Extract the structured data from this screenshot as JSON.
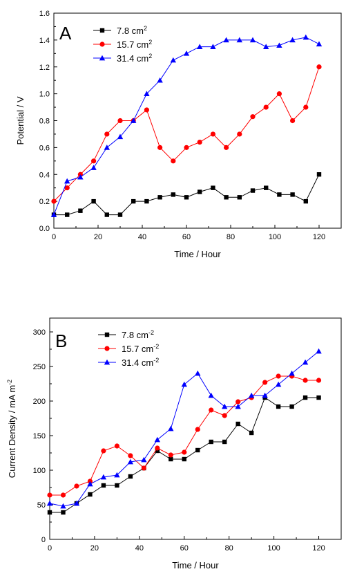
{
  "chart_data": [
    {
      "type": "line",
      "panel_letter": "A",
      "xlabel": "Time / Hour",
      "ylabel": "Potential / V",
      "xlim": [
        0,
        130
      ],
      "ylim": [
        0.0,
        1.6
      ],
      "xticks": [
        0,
        20,
        40,
        60,
        80,
        100,
        120
      ],
      "yticks": [
        0.0,
        0.2,
        0.4,
        0.6,
        0.8,
        1.0,
        1.2,
        1.4,
        1.6
      ],
      "xtick_labels": [
        "0",
        "20",
        "40",
        "60",
        "80",
        "100",
        "120"
      ],
      "ytick_labels": [
        "0.0",
        "0.2",
        "0.4",
        "0.6",
        "0.8",
        "1.0",
        "1.2",
        "1.4",
        "1.6"
      ],
      "legend_position": "top-left",
      "grid": false,
      "series": [
        {
          "name": "7.8 cm",
          "unit_sup": "2",
          "color": "#000000",
          "marker": "square",
          "x": [
            0,
            6,
            12,
            18,
            24,
            30,
            36,
            42,
            48,
            54,
            60,
            66,
            72,
            78,
            84,
            90,
            96,
            102,
            108,
            114,
            120
          ],
          "y": [
            0.1,
            0.1,
            0.13,
            0.2,
            0.1,
            0.1,
            0.2,
            0.2,
            0.23,
            0.25,
            0.23,
            0.27,
            0.3,
            0.23,
            0.23,
            0.28,
            0.3,
            0.25,
            0.25,
            0.2,
            0.4
          ]
        },
        {
          "name": "15.7 cm",
          "unit_sup": "2",
          "color": "#ff0000",
          "marker": "circle",
          "x": [
            0,
            6,
            12,
            18,
            24,
            30,
            36,
            42,
            48,
            54,
            60,
            66,
            72,
            78,
            84,
            90,
            96,
            102,
            108,
            114,
            120
          ],
          "y": [
            0.2,
            0.3,
            0.4,
            0.5,
            0.7,
            0.8,
            0.8,
            0.88,
            0.6,
            0.5,
            0.6,
            0.64,
            0.7,
            0.6,
            0.7,
            0.83,
            0.9,
            1.0,
            0.8,
            0.9,
            1.2
          ]
        },
        {
          "name": "31.4 cm",
          "unit_sup": "2",
          "color": "#0000ff",
          "marker": "triangle",
          "x": [
            0,
            6,
            12,
            18,
            24,
            30,
            36,
            42,
            48,
            54,
            60,
            66,
            72,
            78,
            84,
            90,
            96,
            102,
            108,
            114,
            120
          ],
          "y": [
            0.1,
            0.35,
            0.38,
            0.45,
            0.6,
            0.68,
            0.8,
            1.0,
            1.1,
            1.25,
            1.3,
            1.35,
            1.35,
            1.4,
            1.4,
            1.4,
            1.35,
            1.36,
            1.4,
            1.42,
            1.37
          ]
        }
      ]
    },
    {
      "type": "line",
      "panel_letter": "B",
      "xlabel": "Time / Hour",
      "ylabel": "Current Density / mA m",
      "ylabel_sup": "-2",
      "xlim": [
        0,
        130
      ],
      "ylim": [
        0,
        320
      ],
      "xticks": [
        0,
        20,
        40,
        60,
        80,
        100,
        120
      ],
      "yticks": [
        0,
        50,
        100,
        150,
        200,
        250,
        300
      ],
      "xtick_labels": [
        "0",
        "20",
        "40",
        "60",
        "80",
        "100",
        "120"
      ],
      "ytick_labels": [
        "0",
        "50",
        "100",
        "150",
        "200",
        "250",
        "300"
      ],
      "legend_position": "top-left",
      "grid": false,
      "series": [
        {
          "name": "7.8 cm",
          "unit_sup": "-2",
          "color": "#000000",
          "marker": "square",
          "x": [
            0,
            6,
            12,
            18,
            24,
            30,
            36,
            42,
            48,
            54,
            60,
            66,
            72,
            78,
            84,
            90,
            96,
            102,
            108,
            114,
            120
          ],
          "y": [
            39,
            39,
            52,
            65,
            78,
            78,
            91,
            103,
            128,
            116,
            116,
            129,
            141,
            141,
            167,
            154,
            205,
            192,
            192,
            205,
            205
          ]
        },
        {
          "name": "15.7 cm",
          "unit_sup": "-2",
          "color": "#ff0000",
          "marker": "circle",
          "x": [
            0,
            6,
            12,
            18,
            24,
            30,
            36,
            42,
            48,
            54,
            60,
            66,
            72,
            78,
            84,
            90,
            96,
            102,
            108,
            114,
            120
          ],
          "y": [
            64,
            64,
            77,
            84,
            128,
            135,
            121,
            103,
            132,
            122,
            126,
            159,
            187,
            179,
            199,
            205,
            227,
            236,
            236,
            230,
            230
          ]
        },
        {
          "name": "31.4 cm",
          "unit_sup": "-2",
          "color": "#0000ff",
          "marker": "triangle",
          "x": [
            0,
            6,
            12,
            18,
            24,
            30,
            36,
            42,
            48,
            54,
            60,
            66,
            72,
            78,
            84,
            90,
            96,
            102,
            108,
            114,
            120
          ],
          "y": [
            52,
            48,
            52,
            80,
            90,
            93,
            112,
            115,
            144,
            160,
            224,
            240,
            208,
            192,
            192,
            208,
            208,
            224,
            240,
            256,
            272
          ]
        }
      ]
    }
  ]
}
